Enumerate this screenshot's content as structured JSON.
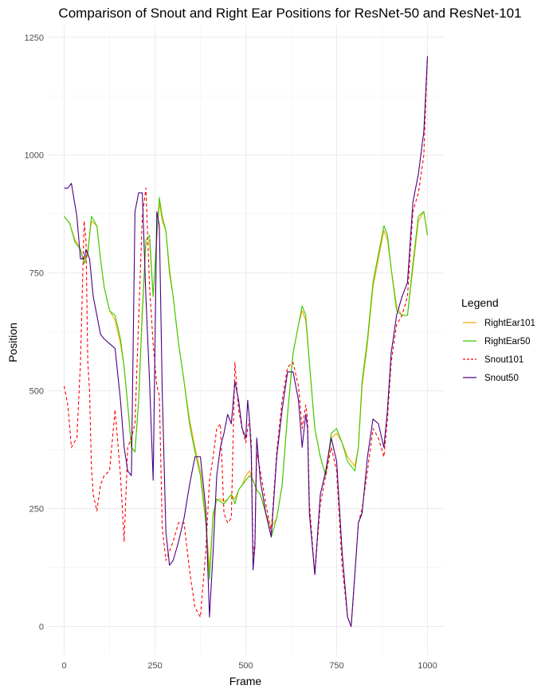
{
  "chart_data": {
    "type": "line",
    "title": "Comparison of Snout and Right Ear Positions for ResNet-50 and ResNet-101",
    "xlabel": "Frame",
    "ylabel": "Position",
    "xlim": [
      -45,
      1045
    ],
    "ylim": [
      -60,
      1275
    ],
    "xticks": [
      0,
      250,
      500,
      750,
      1000
    ],
    "yticks": [
      0,
      250,
      500,
      750,
      1000,
      1250
    ],
    "grid": true,
    "legend": {
      "title": "Legend",
      "placement": "right"
    },
    "series": [
      {
        "name": "RightEar101",
        "color": "#FFA500",
        "dash": "none",
        "x": [
          0,
          15,
          30,
          45,
          55,
          65,
          75,
          90,
          100,
          110,
          125,
          140,
          155,
          165,
          175,
          185,
          195,
          205,
          215,
          225,
          235,
          245,
          255,
          262,
          270,
          280,
          290,
          300,
          315,
          330,
          345,
          360,
          375,
          390,
          400,
          410,
          420,
          430,
          440,
          450,
          460,
          470,
          480,
          490,
          500,
          510,
          520,
          530,
          540,
          555,
          570,
          585,
          600,
          615,
          630,
          645,
          655,
          665,
          675,
          690,
          705,
          720,
          735,
          750,
          765,
          780,
          790,
          800,
          810,
          820,
          835,
          850,
          865,
          880,
          890,
          900,
          915,
          930,
          945,
          960,
          975,
          990,
          1000
        ],
        "y": [
          870,
          855,
          820,
          800,
          770,
          800,
          860,
          850,
          780,
          720,
          670,
          650,
          600,
          550,
          470,
          380,
          370,
          480,
          660,
          810,
          820,
          700,
          820,
          900,
          860,
          840,
          760,
          700,
          600,
          520,
          440,
          380,
          330,
          230,
          120,
          230,
          270,
          270,
          265,
          270,
          280,
          270,
          290,
          300,
          320,
          330,
          310,
          290,
          280,
          240,
          210,
          230,
          300,
          450,
          580,
          640,
          670,
          650,
          560,
          420,
          360,
          320,
          400,
          410,
          390,
          360,
          350,
          340,
          380,
          510,
          600,
          720,
          780,
          840,
          820,
          760,
          680,
          660,
          660,
          760,
          860,
          880,
          830
        ]
      },
      {
        "name": "RightEar50",
        "color": "#33CC00",
        "dash": "none",
        "x": [
          0,
          15,
          30,
          45,
          55,
          65,
          75,
          90,
          100,
          110,
          125,
          140,
          155,
          165,
          175,
          185,
          195,
          205,
          215,
          225,
          235,
          245,
          255,
          262,
          270,
          280,
          290,
          300,
          315,
          330,
          345,
          360,
          375,
          390,
          400,
          410,
          420,
          430,
          440,
          450,
          460,
          470,
          480,
          490,
          500,
          510,
          520,
          530,
          540,
          555,
          570,
          585,
          600,
          615,
          630,
          645,
          655,
          665,
          675,
          690,
          705,
          720,
          735,
          750,
          765,
          780,
          790,
          800,
          810,
          820,
          835,
          850,
          865,
          880,
          890,
          900,
          915,
          930,
          945,
          960,
          975,
          990,
          1000
        ],
        "y": [
          870,
          855,
          815,
          800,
          770,
          790,
          870,
          850,
          780,
          720,
          670,
          660,
          610,
          550,
          470,
          380,
          370,
          480,
          670,
          820,
          830,
          700,
          830,
          910,
          870,
          840,
          750,
          700,
          600,
          520,
          430,
          370,
          320,
          220,
          100,
          240,
          270,
          265,
          260,
          270,
          280,
          260,
          290,
          300,
          310,
          320,
          310,
          290,
          280,
          240,
          190,
          230,
          300,
          450,
          580,
          640,
          680,
          660,
          560,
          420,
          360,
          320,
          410,
          420,
          390,
          350,
          340,
          330,
          380,
          520,
          610,
          730,
          790,
          850,
          830,
          760,
          670,
          660,
          660,
          770,
          870,
          880,
          830
        ]
      },
      {
        "name": "Snout101",
        "color": "#FF0000",
        "dash": "4,3",
        "x": [
          0,
          10,
          20,
          35,
          45,
          55,
          60,
          65,
          70,
          75,
          80,
          90,
          100,
          110,
          125,
          140,
          155,
          165,
          175,
          185,
          195,
          205,
          215,
          225,
          235,
          245,
          255,
          262,
          270,
          280,
          290,
          300,
          315,
          330,
          345,
          360,
          375,
          390,
          400,
          410,
          420,
          430,
          440,
          450,
          460,
          470,
          480,
          490,
          500,
          505,
          510,
          515,
          520,
          525,
          530,
          540,
          555,
          570,
          585,
          600,
          615,
          630,
          645,
          655,
          665,
          670,
          675,
          690,
          705,
          720,
          735,
          750,
          765,
          780,
          790,
          800,
          810,
          820,
          835,
          850,
          865,
          880,
          890,
          900,
          915,
          930,
          945,
          960,
          975,
          990,
          1000
        ],
        "y": [
          510,
          470,
          380,
          400,
          560,
          860,
          820,
          560,
          500,
          340,
          280,
          245,
          300,
          320,
          330,
          460,
          320,
          180,
          380,
          400,
          430,
          650,
          870,
          930,
          720,
          600,
          510,
          490,
          210,
          140,
          160,
          180,
          220,
          220,
          120,
          40,
          20,
          160,
          310,
          360,
          420,
          430,
          240,
          220,
          230,
          560,
          460,
          420,
          390,
          420,
          440,
          390,
          150,
          180,
          370,
          330,
          260,
          200,
          370,
          480,
          550,
          560,
          510,
          420,
          470,
          440,
          260,
          110,
          260,
          320,
          380,
          330,
          130,
          20,
          0,
          110,
          220,
          250,
          330,
          420,
          400,
          360,
          440,
          560,
          640,
          660,
          700,
          880,
          920,
          1000,
          1210
        ]
      },
      {
        "name": "Snout50",
        "color": "#4B0082",
        "dash": "none",
        "x": [
          0,
          10,
          20,
          35,
          45,
          55,
          60,
          65,
          70,
          75,
          80,
          90,
          100,
          110,
          125,
          140,
          155,
          165,
          175,
          185,
          195,
          205,
          215,
          225,
          235,
          245,
          255,
          262,
          270,
          280,
          290,
          300,
          315,
          330,
          345,
          360,
          375,
          390,
          400,
          410,
          420,
          430,
          440,
          450,
          460,
          470,
          480,
          490,
          500,
          505,
          510,
          515,
          520,
          525,
          530,
          540,
          555,
          570,
          585,
          600,
          615,
          630,
          645,
          655,
          665,
          670,
          675,
          690,
          705,
          720,
          735,
          750,
          765,
          780,
          790,
          800,
          810,
          820,
          835,
          850,
          865,
          880,
          890,
          900,
          915,
          930,
          945,
          960,
          975,
          990,
          1000
        ],
        "y": [
          930,
          930,
          940,
          870,
          780,
          780,
          800,
          790,
          780,
          740,
          700,
          660,
          620,
          610,
          600,
          590,
          480,
          380,
          330,
          320,
          880,
          920,
          920,
          700,
          520,
          310,
          880,
          850,
          500,
          200,
          130,
          140,
          180,
          230,
          300,
          360,
          360,
          250,
          20,
          160,
          320,
          380,
          410,
          450,
          430,
          520,
          480,
          420,
          400,
          480,
          440,
          370,
          120,
          170,
          400,
          310,
          240,
          190,
          360,
          460,
          540,
          540,
          480,
          380,
          450,
          420,
          240,
          110,
          280,
          330,
          400,
          350,
          160,
          20,
          0,
          110,
          220,
          240,
          360,
          440,
          430,
          380,
          460,
          580,
          660,
          700,
          730,
          900,
          960,
          1050,
          1210
        ]
      }
    ]
  }
}
